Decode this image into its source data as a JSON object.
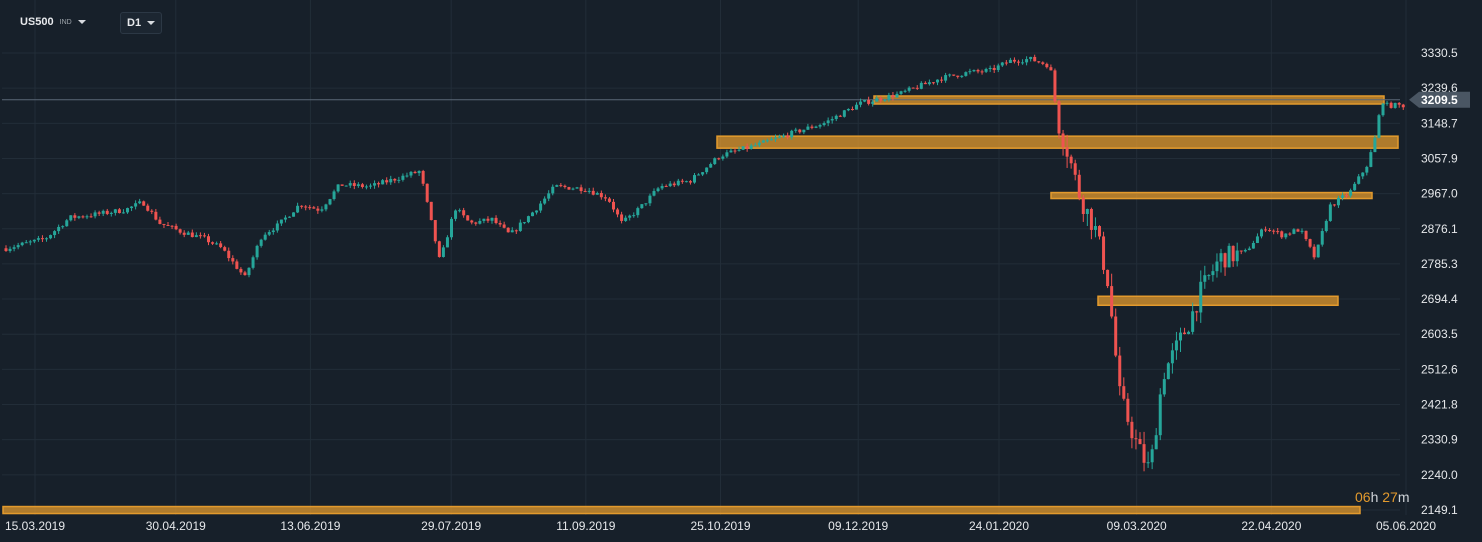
{
  "toolbar": {
    "symbol": "US500",
    "symbol_type": "IND",
    "timeframe": "D1"
  },
  "countdown": {
    "hours": "06",
    "h_unit": "h",
    "minutes": "27",
    "m_unit": "m"
  },
  "colors": {
    "background": "#17202a",
    "grid": "#222d38",
    "up": "#26a69a",
    "down": "#ef5350",
    "zone": "#e39a2d",
    "price_line": "#5a6776"
  },
  "chart_data": {
    "type": "candlestick",
    "title": "",
    "symbol": "US500",
    "timeframe": "D1",
    "y_ticks": [
      "3330.5",
      "3239.6",
      "3148.7",
      "3057.9",
      "2967.0",
      "2876.1",
      "2785.3",
      "2694.4",
      "2603.5",
      "2512.6",
      "2421.8",
      "2330.9",
      "2240.0",
      "2149.1"
    ],
    "x_ticks": [
      "15.03.2019",
      "30.04.2019",
      "13.06.2019",
      "29.07.2019",
      "11.09.2019",
      "25.10.2019",
      "09.12.2019",
      "24.01.2020",
      "09.03.2020",
      "22.04.2020",
      "05.06.2020"
    ],
    "ylim": [
      2149.1,
      3330.5
    ],
    "current_price": "3209.5",
    "horizontal_zones": [
      {
        "from": "24.01.2020",
        "to": "05.06.2020",
        "level": 3209
      },
      {
        "from": "25.10.2019",
        "to": "05.06.2020",
        "level": 3100
      },
      {
        "from": "24.01.2020",
        "to": "05.06.2020",
        "level": 2962
      },
      {
        "from": "09.03.2020",
        "to": "05.06.2020",
        "level": 2690
      },
      {
        "from": "15.03.2019",
        "to": "05.06.2020",
        "level": 2149
      }
    ],
    "close_path": [
      [
        "15.03.2019",
        2822
      ],
      [
        "30.04.2019",
        2945
      ],
      [
        "13.06.2019",
        2890
      ],
      [
        "29.07.2019",
        3025
      ],
      [
        "11.09.2019",
        3000
      ],
      [
        "25.10.2019",
        3022
      ],
      [
        "09.12.2019",
        3135
      ],
      [
        "24.01.2020",
        3295
      ],
      [
        "09.03.2020",
        2746
      ],
      [
        "22.04.2020",
        2799
      ],
      [
        "05.06.2020",
        3193
      ]
    ],
    "grid": true
  }
}
